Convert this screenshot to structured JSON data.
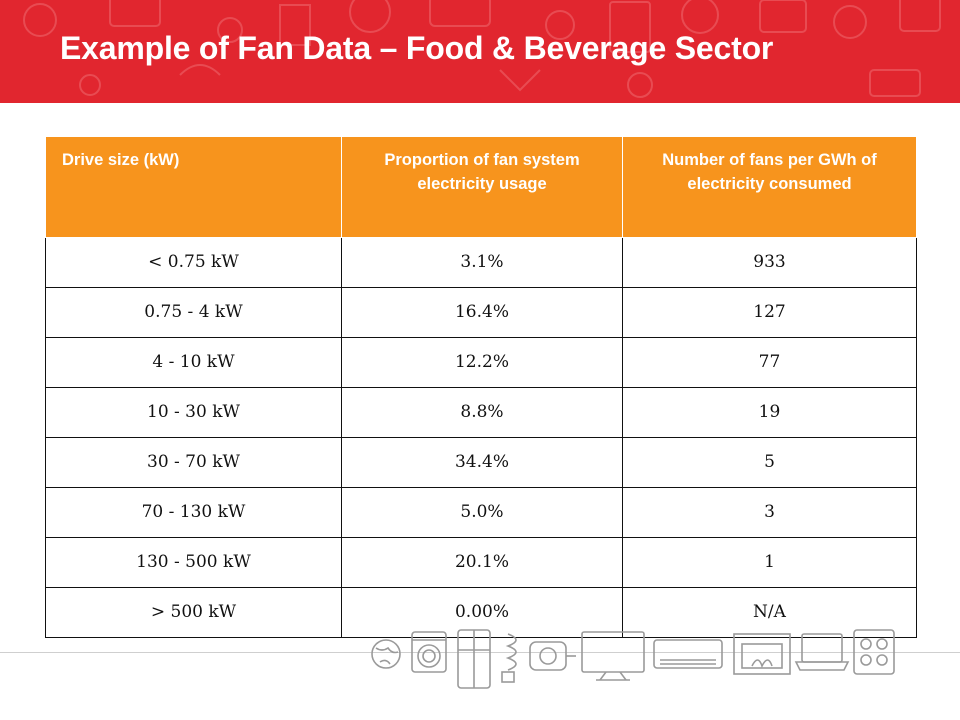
{
  "slide": {
    "title": "Example of Fan Data – Food & Beverage Sector"
  },
  "colors": {
    "header_red": "#e1262f",
    "table_header_orange": "#f7941d"
  },
  "table": {
    "headers": [
      "Drive size (kW)",
      "Proportion of fan system electricity usage",
      "Number of fans per GWh of electricity consumed"
    ],
    "rows": [
      [
        "< 0.75 kW",
        "3.1%",
        "933"
      ],
      [
        "0.75 - 4 kW",
        "16.4%",
        "127"
      ],
      [
        "4 - 10 kW",
        "12.2%",
        "77"
      ],
      [
        "10 - 30 kW",
        "8.8%",
        "19"
      ],
      [
        "30 - 70 kW",
        "34.4%",
        "5"
      ],
      [
        "70 - 130 kW",
        "5.0%",
        "3"
      ],
      [
        "130 - 500 kW",
        "20.1%",
        "1"
      ],
      [
        "> 500 kW",
        "0.00%",
        "N/A"
      ]
    ]
  },
  "decorations": {
    "header_pattern": "appliance-outline-pattern",
    "footer_icons": [
      "globe-icon",
      "washing-machine-icon",
      "refrigerator-icon",
      "light-bulb-icon",
      "motor-icon",
      "television-icon",
      "air-conditioner-icon",
      "fireplace-icon",
      "laptop-icon",
      "stove-icon"
    ]
  }
}
